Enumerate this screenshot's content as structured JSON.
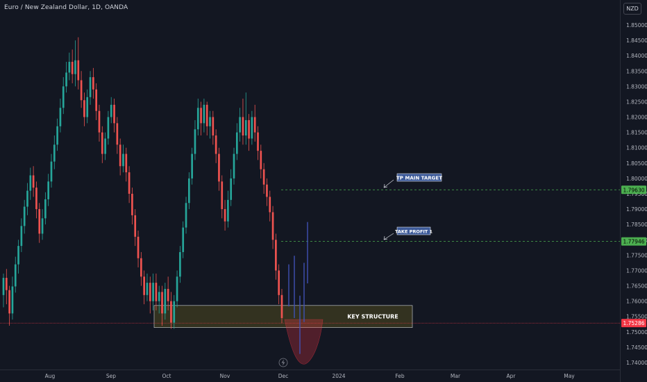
{
  "header": {
    "title": "Euro / New Zealand Dollar, 1D, OANDA",
    "currency": "NZD"
  },
  "colors": {
    "background": "#131722",
    "up": "#26a69a",
    "down": "#ef5350",
    "projection": "#3f51b5",
    "target_line": "#4caf50",
    "structure_fill": "#3a3a20",
    "current_price_label": "#f23645",
    "label_box": "#3d5a99"
  },
  "chart_data": {
    "type": "candlestick",
    "y_axis": {
      "min": 1.7375,
      "max": 1.8525,
      "ticks": [
        "1.85000",
        "1.84500",
        "1.84000",
        "1.83500",
        "1.83000",
        "1.82500",
        "1.82000",
        "1.81500",
        "1.81000",
        "1.80500",
        "1.80000",
        "1.79500",
        "1.79000",
        "1.78500",
        "1.78000",
        "1.77500",
        "1.77000",
        "1.76500",
        "1.76000",
        "1.75500",
        "1.75000",
        "1.74500",
        "1.74000"
      ]
    },
    "x_axis": {
      "ticks": [
        "Aug",
        "Sep",
        "Oct",
        "Nov",
        "Dec",
        "2024",
        "Feb",
        "Mar",
        "Apr",
        "May"
      ]
    },
    "price_labels": [
      {
        "value": 1.7963,
        "text": "1.79630",
        "color": "#4caf50"
      },
      {
        "value": 1.77946,
        "text": "1.77946",
        "color": "#4caf50"
      },
      {
        "value": 1.75286,
        "text": "1.75286",
        "color": "#f23645"
      }
    ],
    "annotations": {
      "tp_main_target": {
        "label": "TP MAIN TARGET",
        "price": 1.7963
      },
      "take_profit_1": {
        "label": "TAKE PROFIT 1",
        "price": 1.77946
      },
      "key_structure": {
        "label": "KEY STRUCTURE",
        "price_top": 1.7586,
        "price_bottom": 1.7514
      }
    },
    "projection": {
      "lows": [
        1.7583,
        1.7545,
        1.7428,
        1.7532,
        1.7658
      ],
      "highs": [
        1.772,
        1.7748,
        1.7618,
        1.7725,
        1.7858
      ]
    },
    "candles": [
      [
        1.762,
        1.7676,
        1.758,
        1.769
      ],
      [
        1.7676,
        1.7636,
        1.759,
        1.7705
      ],
      [
        1.7636,
        1.756,
        1.752,
        1.765
      ],
      [
        1.756,
        1.7648,
        1.754,
        1.768
      ],
      [
        1.7648,
        1.772,
        1.7628,
        1.7745
      ],
      [
        1.772,
        1.778,
        1.769,
        1.78
      ],
      [
        1.778,
        1.7845,
        1.776,
        1.787
      ],
      [
        1.7845,
        1.7908,
        1.782,
        1.793
      ],
      [
        1.7908,
        1.796,
        1.788,
        1.7985
      ],
      [
        1.796,
        1.801,
        1.793,
        1.8035
      ],
      [
        1.801,
        1.797,
        1.794,
        1.804
      ],
      [
        1.797,
        1.79,
        1.787,
        1.799
      ],
      [
        1.79,
        1.782,
        1.779,
        1.792
      ],
      [
        1.782,
        1.787,
        1.78,
        1.79
      ],
      [
        1.787,
        1.7932,
        1.785,
        1.7955
      ],
      [
        1.7932,
        1.799,
        1.791,
        1.8015
      ],
      [
        1.799,
        1.8055,
        1.797,
        1.808
      ],
      [
        1.8055,
        1.811,
        1.803,
        1.814
      ],
      [
        1.811,
        1.817,
        1.809,
        1.8195
      ],
      [
        1.817,
        1.823,
        1.815,
        1.826
      ],
      [
        1.823,
        1.83,
        1.821,
        1.833
      ],
      [
        1.83,
        1.8345,
        1.828,
        1.838
      ],
      [
        1.8345,
        1.838,
        1.832,
        1.841
      ],
      [
        1.838,
        1.834,
        1.831,
        1.842
      ],
      [
        1.834,
        1.8385,
        1.83,
        1.845
      ],
      [
        1.8385,
        1.832,
        1.829,
        1.846
      ],
      [
        1.832,
        1.8255,
        1.823,
        1.835
      ],
      [
        1.8255,
        1.82,
        1.817,
        1.828
      ],
      [
        1.82,
        1.8265,
        1.818,
        1.829
      ],
      [
        1.8265,
        1.833,
        1.824,
        1.835
      ],
      [
        1.833,
        1.829,
        1.826,
        1.836
      ],
      [
        1.829,
        1.822,
        1.819,
        1.831
      ],
      [
        1.822,
        1.815,
        1.812,
        1.824
      ],
      [
        1.815,
        1.808,
        1.805,
        1.817
      ],
      [
        1.808,
        1.813,
        1.806,
        1.815
      ],
      [
        1.813,
        1.82,
        1.811,
        1.822
      ],
      [
        1.82,
        1.824,
        1.818,
        1.8265
      ],
      [
        1.824,
        1.818,
        1.815,
        1.826
      ],
      [
        1.818,
        1.811,
        1.808,
        1.82
      ],
      [
        1.811,
        1.804,
        1.801,
        1.813
      ],
      [
        1.804,
        1.808,
        1.802,
        1.811
      ],
      [
        1.808,
        1.802,
        1.799,
        1.81
      ],
      [
        1.802,
        1.795,
        1.792,
        1.804
      ],
      [
        1.795,
        1.788,
        1.785,
        1.797
      ],
      [
        1.788,
        1.781,
        1.778,
        1.79
      ],
      [
        1.781,
        1.774,
        1.771,
        1.783
      ],
      [
        1.774,
        1.768,
        1.765,
        1.776
      ],
      [
        1.768,
        1.762,
        1.759,
        1.77
      ],
      [
        1.762,
        1.766,
        1.76,
        1.769
      ],
      [
        1.766,
        1.76,
        1.756,
        1.768
      ],
      [
        1.76,
        1.766,
        1.757,
        1.769
      ],
      [
        1.766,
        1.76,
        1.757,
        1.769
      ],
      [
        1.76,
        1.763,
        1.756,
        1.765
      ],
      [
        1.763,
        1.756,
        1.752,
        1.765
      ],
      [
        1.756,
        1.764,
        1.754,
        1.766
      ],
      [
        1.764,
        1.76,
        1.757,
        1.768
      ],
      [
        1.76,
        1.753,
        1.751,
        1.763
      ],
      [
        1.753,
        1.76,
        1.751,
        1.762
      ],
      [
        1.76,
        1.768,
        1.758,
        1.77
      ],
      [
        1.768,
        1.776,
        1.766,
        1.778
      ],
      [
        1.776,
        1.784,
        1.774,
        1.786
      ],
      [
        1.784,
        1.792,
        1.782,
        1.794
      ],
      [
        1.792,
        1.8,
        1.79,
        1.802
      ],
      [
        1.8,
        1.808,
        1.798,
        1.81
      ],
      [
        1.808,
        1.816,
        1.806,
        1.819
      ],
      [
        1.816,
        1.823,
        1.814,
        1.826
      ],
      [
        1.823,
        1.818,
        1.814,
        1.825
      ],
      [
        1.818,
        1.824,
        1.815,
        1.826
      ],
      [
        1.824,
        1.817,
        1.814,
        1.825
      ],
      [
        1.817,
        1.82,
        1.813,
        1.822
      ],
      [
        1.82,
        1.814,
        1.811,
        1.822
      ],
      [
        1.814,
        1.808,
        1.805,
        1.816
      ],
      [
        1.808,
        1.799,
        1.796,
        1.81
      ],
      [
        1.799,
        1.79,
        1.787,
        1.801
      ],
      [
        1.79,
        1.786,
        1.783,
        1.793
      ],
      [
        1.786,
        1.793,
        1.784,
        1.796
      ],
      [
        1.793,
        1.8,
        1.791,
        1.803
      ],
      [
        1.8,
        1.808,
        1.798,
        1.81
      ],
      [
        1.808,
        1.815,
        1.806,
        1.818
      ],
      [
        1.815,
        1.82,
        1.812,
        1.823
      ],
      [
        1.82,
        1.814,
        1.811,
        1.826
      ],
      [
        1.814,
        1.819,
        1.811,
        1.828
      ],
      [
        1.819,
        1.813,
        1.809,
        1.821
      ],
      [
        1.813,
        1.82,
        1.811,
        1.822
      ],
      [
        1.82,
        1.815,
        1.812,
        1.824
      ],
      [
        1.815,
        1.809,
        1.806,
        1.817
      ],
      [
        1.809,
        1.803,
        1.8,
        1.811
      ],
      [
        1.803,
        1.798,
        1.795,
        1.805
      ],
      [
        1.798,
        1.794,
        1.791,
        1.8
      ],
      [
        1.794,
        1.789,
        1.786,
        1.796
      ],
      [
        1.789,
        1.78,
        1.777,
        1.791
      ],
      [
        1.78,
        1.77,
        1.767,
        1.782
      ],
      [
        1.77,
        1.762,
        1.759,
        1.772
      ],
      [
        1.762,
        1.7545,
        1.7528,
        1.764
      ]
    ]
  }
}
